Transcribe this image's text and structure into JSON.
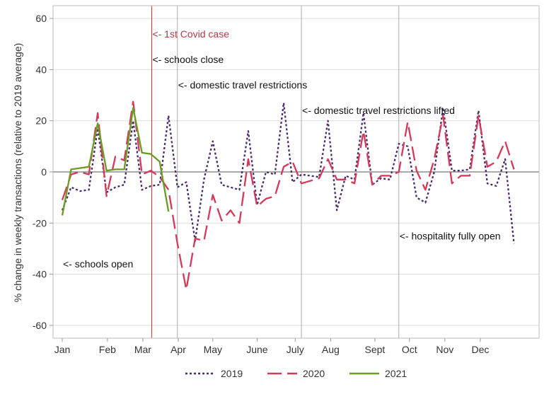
{
  "chart_data": {
    "type": "line",
    "ylabel": "% change in weekly transactions (relative to 2019 average)",
    "xlabel": "",
    "ylim": [
      -65,
      65
    ],
    "xlim": [
      1,
      53
    ],
    "y_ticks": [
      60,
      40,
      20,
      0,
      -20,
      -40,
      -60
    ],
    "grid": true,
    "legend_position": "bottom",
    "x_ticks": [
      {
        "label": "Jan",
        "week": 1
      },
      {
        "label": "Feb",
        "week": 6.1
      },
      {
        "label": "Mar",
        "week": 10.1
      },
      {
        "label": "Apr",
        "week": 14.1
      },
      {
        "label": "May",
        "week": 18
      },
      {
        "label": "June",
        "week": 23
      },
      {
        "label": "July",
        "week": 27.3
      },
      {
        "label": "Aug",
        "week": 31.3
      },
      {
        "label": "Sept",
        "week": 36.3
      },
      {
        "label": "Oct",
        "week": 40.2
      },
      {
        "label": "Nov",
        "week": 44.2
      },
      {
        "label": "Dec",
        "week": 48.2
      }
    ],
    "vlines": [
      {
        "week": 11.1,
        "color": "#c0392b",
        "annotation": "<- 1st Covid case"
      },
      {
        "week": 14,
        "color": "#aaaaaa",
        "annotation": ""
      },
      {
        "week": 28,
        "color": "#aaaaaa",
        "annotation": ""
      },
      {
        "week": 39,
        "color": "#aaaaaa",
        "annotation": ""
      }
    ],
    "annotations": [
      {
        "text": "<- 1st Covid case",
        "week": 11.1,
        "y": 54,
        "color": "#b03a48"
      },
      {
        "text": "<- schools close",
        "week": 11.1,
        "y": 44,
        "color": "#111111"
      },
      {
        "text": "<- domestic travel restrictions",
        "week": 14,
        "y": 34,
        "color": "#111111"
      },
      {
        "text": "<- domestic travel restrictions lifted",
        "week": 28,
        "y": 24,
        "color": "#111111"
      },
      {
        "text": "<- hospitality fully open",
        "week": 39,
        "y": -25,
        "color": "#111111"
      },
      {
        "text": "<- schools open",
        "week": 1,
        "y": -36,
        "color": "#111111"
      }
    ],
    "series": [
      {
        "name": "2019",
        "color": "#4a2c6b",
        "dash": "3,3",
        "values": [
          -15,
          -6,
          -7.5,
          -7,
          17,
          -8,
          -6,
          -5,
          20,
          -7,
          -5.5,
          -5,
          22,
          -6,
          -4,
          -27,
          -3,
          12,
          -5,
          -6,
          -7,
          16,
          -13,
          0,
          -1,
          27,
          -4,
          -1,
          -1.5,
          -2,
          20,
          -15,
          -1.5,
          -3,
          23,
          -5,
          -2.5,
          -3,
          11,
          10,
          -10,
          -12,
          0,
          25,
          0.5,
          0.5,
          1,
          24,
          -4.5,
          -5.5,
          5,
          -28
        ]
      },
      {
        "name": "2020",
        "color": "#d4385a",
        "dash": "20,8",
        "values": [
          -11,
          -1,
          0,
          -1,
          23,
          -9.5,
          6,
          4.5,
          27.5,
          -1,
          0.5,
          -2,
          -7,
          -28,
          -46,
          -26,
          -27,
          -9,
          -19,
          -15,
          -20,
          5,
          -13.5,
          -10.5,
          -9.5,
          2,
          4,
          -4.5,
          -3.5,
          -2.5,
          5,
          -3,
          -3,
          -4.5,
          16,
          -5,
          -1.5,
          -1.5,
          0,
          19.5,
          0.5,
          -7,
          5,
          22,
          -4.5,
          -1.5,
          -1.5,
          22,
          2,
          4,
          12,
          1
        ]
      },
      {
        "name": "2021",
        "color": "#6a9b22",
        "dash": "",
        "values": [
          -17,
          1,
          1.5,
          2,
          19,
          0.5,
          1,
          1,
          25,
          7.5,
          7,
          4,
          -15.5
        ]
      }
    ]
  }
}
